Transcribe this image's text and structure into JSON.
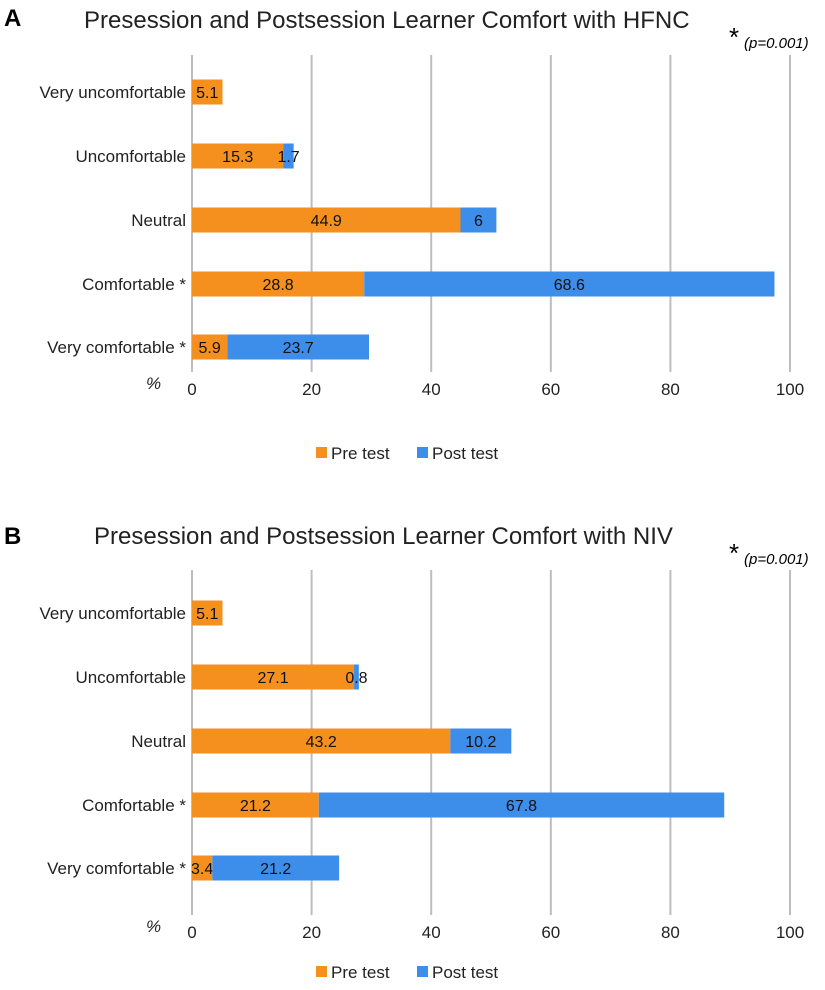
{
  "colors": {
    "pre": "#F5901E",
    "post": "#3D8DEB",
    "grid": "#BDBDBD"
  },
  "chart_data": [
    {
      "type": "bar",
      "orientation": "horizontal",
      "stacked": true,
      "panel_letter": "A",
      "title": "Presession and Postsession Learner Comfort with HFNC",
      "significance_star": "*",
      "significance_note": "(p=0.001)",
      "xlabel": "%",
      "xlim": [
        0,
        100
      ],
      "xticks": [
        "0",
        "20",
        "40",
        "60",
        "80",
        "100"
      ],
      "categories": [
        "Very uncomfortable",
        "Uncomfortable",
        "Neutral",
        "Comfortable *",
        "Very comfortable *"
      ],
      "series": [
        {
          "name": "Pre test",
          "values": [
            5.1,
            15.3,
            44.9,
            28.8,
            5.9
          ]
        },
        {
          "name": "Post test",
          "values": [
            null,
            1.7,
            6,
            68.6,
            23.7
          ]
        }
      ],
      "grid": true,
      "legend": "bottom"
    },
    {
      "type": "bar",
      "orientation": "horizontal",
      "stacked": true,
      "panel_letter": "B",
      "title": "Presession and Postsession Learner Comfort with NIV",
      "significance_star": "*",
      "significance_note": "(p=0.001)",
      "xlabel": "%",
      "xlim": [
        0,
        100
      ],
      "xticks": [
        "0",
        "20",
        "40",
        "60",
        "80",
        "100"
      ],
      "categories": [
        "Very uncomfortable",
        "Uncomfortable",
        "Neutral",
        "Comfortable *",
        "Very comfortable *"
      ],
      "series": [
        {
          "name": "Pre test",
          "values": [
            5.1,
            27.1,
            43.2,
            21.2,
            3.4
          ]
        },
        {
          "name": "Post test",
          "values": [
            null,
            0.8,
            10.2,
            67.8,
            21.2
          ]
        }
      ],
      "grid": true,
      "legend": "bottom"
    }
  ]
}
